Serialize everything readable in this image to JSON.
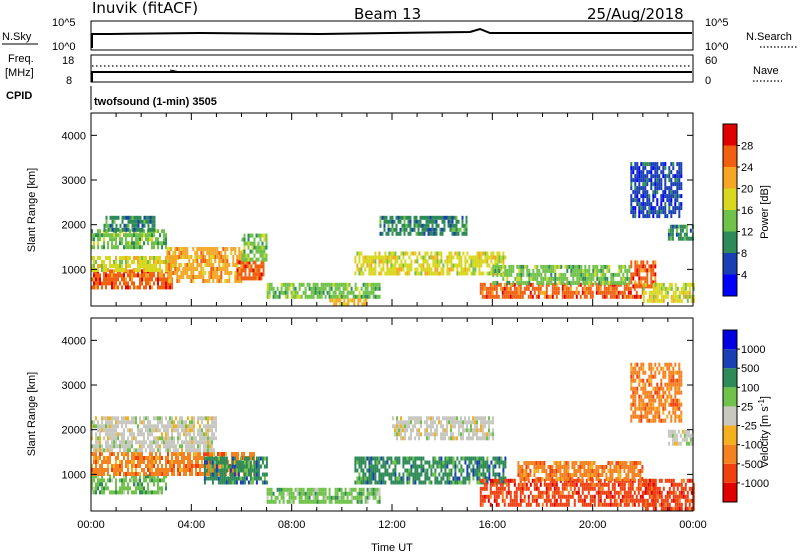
{
  "header": {
    "station": "Inuvik (fitACF)",
    "beam": "Beam 13",
    "date": "25/Aug/2018"
  },
  "noise_panel": {
    "left_label": "N.Sky",
    "left_ticks": [
      "10^5",
      "10^0"
    ],
    "right_ticks": [
      "10^5",
      "10^0"
    ],
    "right_label": "N.Search"
  },
  "freq_panel": {
    "left_label_1": "Freq.",
    "left_label_2": "[MHz]",
    "left_ticks": [
      "18",
      "8"
    ],
    "right_ticks": [
      "60",
      "0"
    ],
    "right_label": "Nave"
  },
  "cpid": {
    "label": "CPID",
    "text": "twofsound (1-min) 3505"
  },
  "chart_data": [
    {
      "type": "heatmap",
      "name": "Power",
      "ylabel": "Slant Range [km]",
      "yticks": [
        "4000",
        "3000",
        "2000",
        "1000"
      ],
      "ylim": [
        180,
        4500
      ],
      "xlabel": "",
      "xlim": [
        0,
        24
      ],
      "colorbar": {
        "label": "Power [dB]",
        "ticks": [
          "28",
          "24",
          "20",
          "16",
          "12",
          "8",
          "4"
        ],
        "colors": [
          "#0000ff",
          "#1a3fb4",
          "#2e8b57",
          "#6fc24a",
          "#d8d820",
          "#f5a623",
          "#f06010",
          "#e00000"
        ]
      },
      "regions": [
        {
          "t0": 0.0,
          "t1": 3.2,
          "r0": 600,
          "r1": 1000,
          "c": 6
        },
        {
          "t0": 0.0,
          "t1": 3.5,
          "r0": 1000,
          "r1": 1300,
          "c": 4
        },
        {
          "t0": 0.0,
          "t1": 3.0,
          "r0": 1500,
          "r1": 1900,
          "c": 3
        },
        {
          "t0": 0.5,
          "t1": 2.5,
          "r0": 1900,
          "r1": 2200,
          "c": 2
        },
        {
          "t0": 3.0,
          "t1": 6.0,
          "r0": 700,
          "r1": 1500,
          "c": 5
        },
        {
          "t0": 5.8,
          "t1": 6.9,
          "r0": 800,
          "r1": 1200,
          "c": 6
        },
        {
          "t0": 6.0,
          "t1": 7.0,
          "r0": 1200,
          "r1": 1800,
          "c": 3
        },
        {
          "t0": 7.0,
          "t1": 11.5,
          "r0": 350,
          "r1": 700,
          "c": 3
        },
        {
          "t0": 9.5,
          "t1": 11.0,
          "r0": 200,
          "r1": 350,
          "c": 5
        },
        {
          "t0": 10.5,
          "t1": 16.5,
          "r0": 900,
          "r1": 1400,
          "c": 4
        },
        {
          "t0": 11.5,
          "t1": 15.0,
          "r0": 1800,
          "r1": 2200,
          "c": 2
        },
        {
          "t0": 15.5,
          "t1": 22.0,
          "r0": 350,
          "r1": 700,
          "c": 6
        },
        {
          "t0": 16.0,
          "t1": 21.5,
          "r0": 700,
          "r1": 1100,
          "c": 3
        },
        {
          "t0": 21.5,
          "t1": 22.5,
          "r0": 600,
          "r1": 1200,
          "c": 6
        },
        {
          "t0": 22.0,
          "t1": 24.0,
          "r0": 300,
          "r1": 700,
          "c": 4
        },
        {
          "t0": 23.0,
          "t1": 24.0,
          "r0": 1700,
          "r1": 2000,
          "c": 2
        },
        {
          "t0": 21.5,
          "t1": 23.5,
          "r0": 2200,
          "r1": 3400,
          "c": 1
        }
      ]
    },
    {
      "type": "heatmap",
      "name": "Velocity",
      "ylabel": "Slant Range [km]",
      "yticks": [
        "4000",
        "3000",
        "2000",
        "1000"
      ],
      "ylim": [
        180,
        4500
      ],
      "xlabel": "Time UT",
      "xticks": [
        "00:00",
        "04:00",
        "08:00",
        "12:00",
        "16:00",
        "20:00",
        "00:00"
      ],
      "xlim": [
        0,
        24
      ],
      "colorbar": {
        "label": "Velocity [m s",
        "label_sup": "-1",
        "label_end": "]",
        "ticks": [
          "1000",
          "500",
          "100",
          "25",
          "-25",
          "-100",
          "-500",
          "-1000"
        ],
        "colors": [
          "#e00000",
          "#f04010",
          "#f58220",
          "#f5b020",
          "#c8c8c0",
          "#6fc24a",
          "#2e8b57",
          "#1a3fb4",
          "#0000e0"
        ]
      },
      "regions": [
        {
          "t0": 0.0,
          "t1": 3.0,
          "r0": 600,
          "r1": 1000,
          "c": 5
        },
        {
          "t0": 0.0,
          "t1": 6.5,
          "r0": 1000,
          "r1": 1500,
          "c": 2
        },
        {
          "t0": 0.0,
          "t1": 5.0,
          "r0": 1500,
          "r1": 2300,
          "c": 4
        },
        {
          "t0": 4.5,
          "t1": 7.0,
          "r0": 800,
          "r1": 1400,
          "c": 6
        },
        {
          "t0": 7.0,
          "t1": 11.5,
          "r0": 350,
          "r1": 700,
          "c": 5
        },
        {
          "t0": 10.5,
          "t1": 16.5,
          "r0": 800,
          "r1": 1400,
          "c": 6
        },
        {
          "t0": 12.0,
          "t1": 16.0,
          "r0": 1800,
          "r1": 2300,
          "c": 4
        },
        {
          "t0": 15.5,
          "t1": 22.5,
          "r0": 300,
          "r1": 900,
          "c": 1
        },
        {
          "t0": 17.0,
          "t1": 22.0,
          "r0": 900,
          "r1": 1300,
          "c": 2
        },
        {
          "t0": 22.0,
          "t1": 24.0,
          "r0": 250,
          "r1": 900,
          "c": 1
        },
        {
          "t0": 23.0,
          "t1": 24.0,
          "r0": 1700,
          "r1": 2000,
          "c": 4
        },
        {
          "t0": 21.5,
          "t1": 23.5,
          "r0": 2200,
          "r1": 3500,
          "c": 2
        }
      ]
    }
  ]
}
